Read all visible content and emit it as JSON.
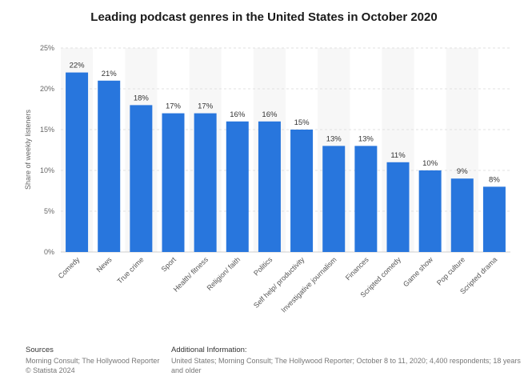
{
  "chart_data": {
    "type": "bar",
    "title": "Leading podcast genres in the United States in October 2020",
    "ylabel": "Share of weekly listeners",
    "xlabel": "",
    "ylim": [
      0,
      25
    ],
    "yticks": [
      "0%",
      "5%",
      "10%",
      "15%",
      "20%",
      "25%"
    ],
    "ytick_values": [
      0,
      5,
      10,
      15,
      20,
      25
    ],
    "categories": [
      "Comedy",
      "News",
      "True crime",
      "Sport",
      "Health/ fitness",
      "Religion/ faith",
      "Politics",
      "Self help/ productivity",
      "Investigative journalism",
      "Finances",
      "Scripted comedy",
      "Game show",
      "Pop culture",
      "Scripted drama"
    ],
    "values": [
      22,
      21,
      18,
      17,
      17,
      16,
      16,
      15,
      13,
      13,
      11,
      10,
      9,
      8
    ],
    "data_labels": [
      "22%",
      "21%",
      "18%",
      "17%",
      "17%",
      "16%",
      "16%",
      "15%",
      "13%",
      "13%",
      "11%",
      "10%",
      "9%",
      "8%"
    ],
    "grid": true,
    "bar_color": "#2876dd"
  },
  "footer": {
    "sources_heading": "Sources",
    "sources_line1": "Morning Consult; The Hollywood Reporter",
    "sources_line2": "© Statista 2024",
    "additional_heading": "Additional Information:",
    "additional_text": "United States; Morning Consult; The Hollywood Reporter; October 8 to 11, 2020; 4,400 respondents; 18 years and older"
  }
}
